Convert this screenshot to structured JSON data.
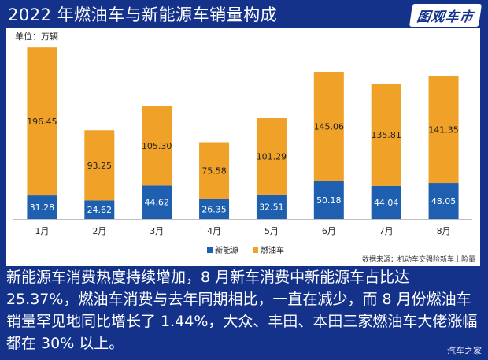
{
  "header": {
    "title": "2022 年燃油车与新能源车销量构成",
    "logo": "图观车市"
  },
  "chart_data": {
    "type": "bar",
    "stacked": true,
    "title": "2022 年燃油车与新能源车销量构成",
    "unit_label": "单位：万辆",
    "categories": [
      "1月",
      "2月",
      "3月",
      "4月",
      "5月",
      "6月",
      "7月",
      "8月"
    ],
    "series": [
      {
        "name": "新能源",
        "color": "#1f5fb0",
        "values": [
          31.28,
          24.62,
          44.62,
          26.35,
          32.51,
          50.18,
          44.04,
          48.05
        ]
      },
      {
        "name": "燃油车",
        "color": "#f0a127",
        "values": [
          196.45,
          93.25,
          105.3,
          75.58,
          101.29,
          145.06,
          135.81,
          141.35
        ]
      }
    ],
    "value_labels": [
      [
        "31.28",
        "24.62",
        "44.62",
        "26.35",
        "32.51",
        "50.18",
        "44.04",
        "48.05"
      ],
      [
        "196.45",
        "93.25",
        "105.30",
        "75.58",
        "101.29",
        "145.06",
        "135.81",
        "141.35"
      ]
    ],
    "ylim": [
      0,
      230
    ],
    "grid": false,
    "legend_position": "bottom-center",
    "source": "数据来源：机动车交强险新车上险量"
  },
  "caption": "新能源车消费热度持续增加，8 月新车消费中新能源车占比达 25.37%，燃油车消费与去年同期相比，一直在减少，而 8 月份燃油车销量罕见地同比增长了 1.44%，大众、丰田、本田三家燃油车大佬涨幅都在 30% 以上。",
  "watermark": "汽车之家"
}
